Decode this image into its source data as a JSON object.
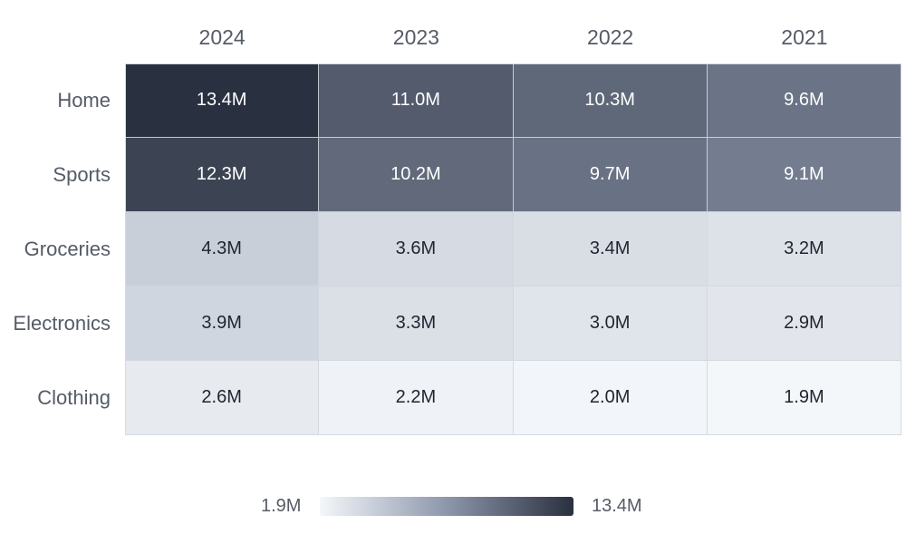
{
  "chart_data": {
    "type": "heatmap",
    "columns": [
      "2024",
      "2023",
      "2022",
      "2021"
    ],
    "rows": [
      "Home",
      "Sports",
      "Groceries",
      "Electronics",
      "Clothing"
    ],
    "values": [
      [
        13.4,
        11.0,
        10.3,
        9.6
      ],
      [
        12.3,
        10.2,
        9.7,
        9.1
      ],
      [
        4.3,
        3.6,
        3.4,
        3.2
      ],
      [
        3.9,
        3.3,
        3.0,
        2.9
      ],
      [
        2.6,
        2.2,
        2.0,
        1.9
      ]
    ],
    "labels": [
      [
        "13.4M",
        "11.0M",
        "10.3M",
        "9.6M"
      ],
      [
        "12.3M",
        "10.2M",
        "9.7M",
        "9.1M"
      ],
      [
        "4.3M",
        "3.6M",
        "3.4M",
        "3.2M"
      ],
      [
        "3.9M",
        "3.3M",
        "3.0M",
        "2.9M"
      ],
      [
        "2.6M",
        "2.2M",
        "2.0M",
        "1.9M"
      ]
    ],
    "color_scale": {
      "min": 1.9,
      "max": 13.4,
      "min_label": "1.9M",
      "max_label": "13.4M",
      "low_color": "#f4f7fa",
      "mid_color": "#8d97ab",
      "high_color": "#29303f"
    },
    "legend_position": "bottom"
  }
}
